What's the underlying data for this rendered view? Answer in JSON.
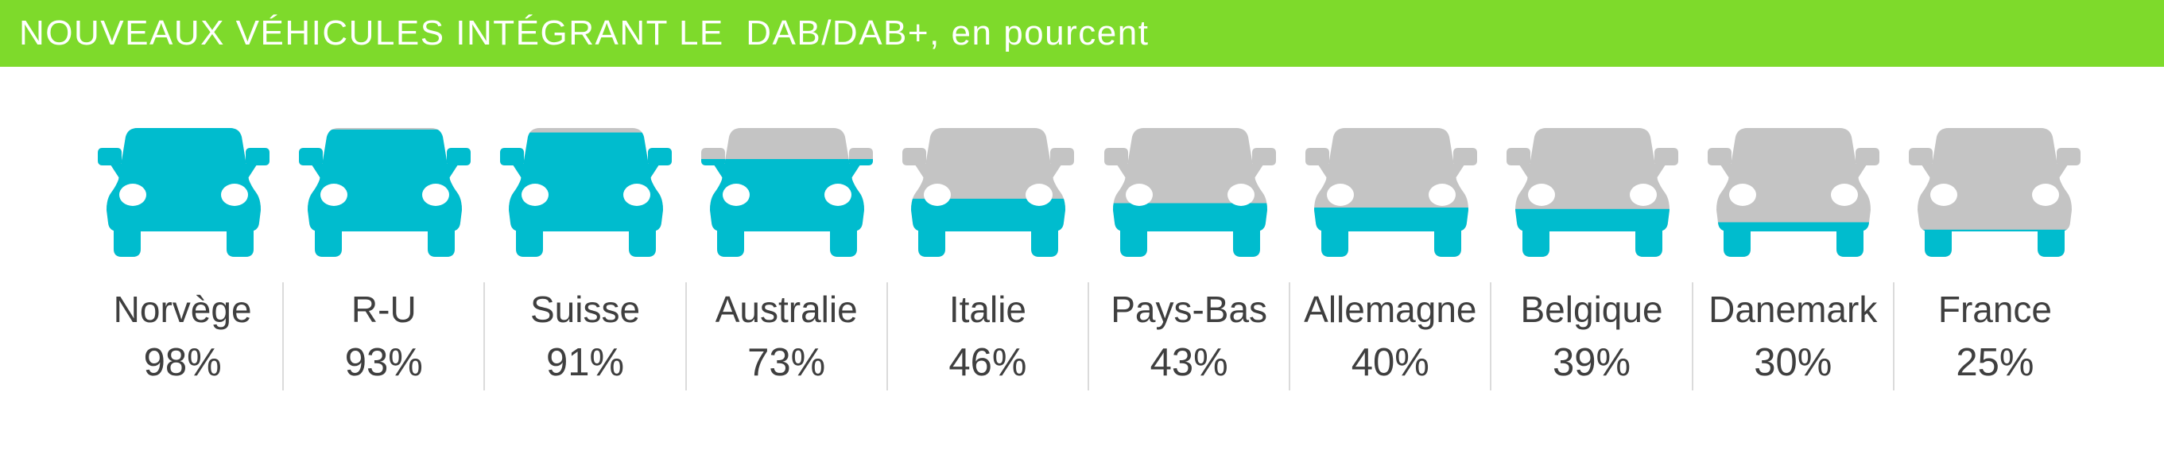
{
  "header": {
    "title": "NOUVEAUX VÉHICULES INTÉGRANT LE  DAB/DAB+, en pourcent"
  },
  "chart_data": {
    "type": "bar",
    "variant": "pictogram-car-fill",
    "title": "NOUVEAUX VÉHICULES INTÉGRANT LE  DAB/DAB+, en pourcent",
    "unit": "percent",
    "ylim": [
      0,
      100
    ],
    "legend": "none",
    "icon": "car-front",
    "categories": [
      "Norvège",
      "R-U",
      "Suisse",
      "Australie",
      "Italie",
      "Pays-Bas",
      "Allemagne",
      "Belgique",
      "Danemark",
      "France"
    ],
    "values": [
      98,
      93,
      91,
      73,
      46,
      43,
      40,
      39,
      30,
      25
    ],
    "value_labels": [
      "98%",
      "93%",
      "91%",
      "73%",
      "46%",
      "43%",
      "40%",
      "39%",
      "30%",
      "25%"
    ],
    "colors": {
      "header_bg": "#7eda2b",
      "header_text": "#ffffff",
      "fill": "#00bcce",
      "empty": "#c4c4c4",
      "headlight": "#ffffff",
      "label_text": "#3f3f3f",
      "divider": "#dbdbdb",
      "background": "#ffffff"
    }
  }
}
